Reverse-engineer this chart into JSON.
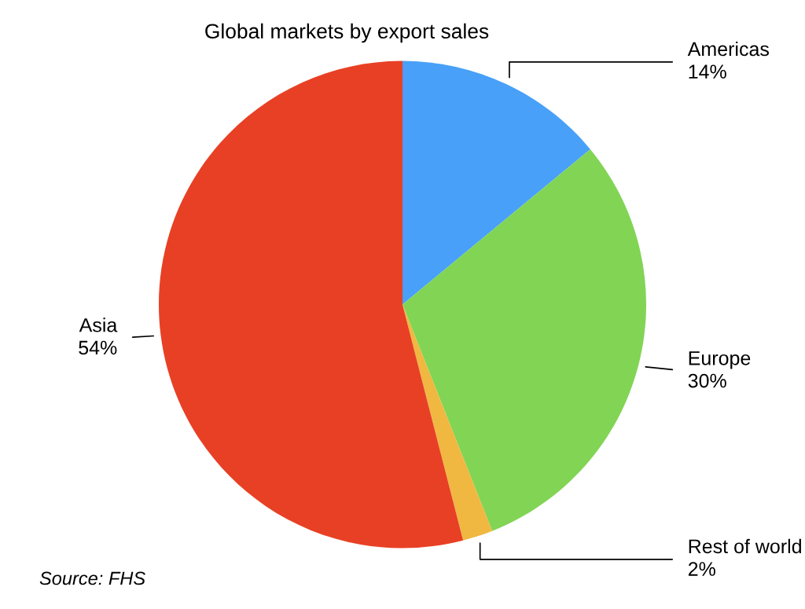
{
  "chart_data": {
    "type": "pie",
    "title": "Global markets by export sales",
    "categories": [
      "Americas",
      "Europe",
      "Rest of world",
      "Asia"
    ],
    "values": [
      14,
      30,
      2,
      54
    ],
    "value_labels": [
      "14%",
      "30%",
      "2%",
      "54%"
    ],
    "colors": [
      "#48a0f8",
      "#82d455",
      "#f0b840",
      "#e84025"
    ],
    "legend": false,
    "annotations": [
      "Source: FHS"
    ]
  }
}
